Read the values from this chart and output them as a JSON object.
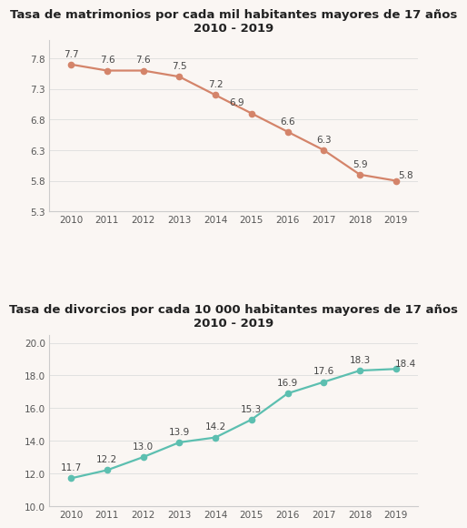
{
  "marriage": {
    "title_line1": "Tasa de matrimonios por cada mil habitantes mayores de 17 años",
    "title_line2": "2010 - 2019",
    "years": [
      2010,
      2011,
      2012,
      2013,
      2014,
      2015,
      2016,
      2017,
      2018,
      2019
    ],
    "values": [
      7.7,
      7.6,
      7.6,
      7.5,
      7.2,
      6.9,
      6.6,
      6.3,
      5.9,
      5.8
    ],
    "ylim": [
      5.3,
      8.1
    ],
    "yticks": [
      5.3,
      5.8,
      6.3,
      6.8,
      7.3,
      7.8
    ],
    "line_color": "#d4846a",
    "marker_color": "#d4846a"
  },
  "divorce": {
    "title_line1": "Tasa de divorcios por cada 10 000 habitantes mayores de 17 años",
    "title_line2": "2010 - 2019",
    "years": [
      2010,
      2011,
      2012,
      2013,
      2014,
      2015,
      2016,
      2017,
      2018,
      2019
    ],
    "values": [
      11.7,
      12.2,
      13.0,
      13.9,
      14.2,
      15.3,
      16.9,
      17.6,
      18.3,
      18.4
    ],
    "ylim": [
      10.0,
      20.5
    ],
    "yticks": [
      10.0,
      12.0,
      14.0,
      16.0,
      18.0,
      20.0
    ],
    "line_color": "#5cbfb0",
    "marker_color": "#5cbfb0"
  },
  "background_color": "#faf6f3",
  "title_fontsize": 9.5,
  "label_fontsize": 7.5,
  "tick_fontsize": 7.5
}
